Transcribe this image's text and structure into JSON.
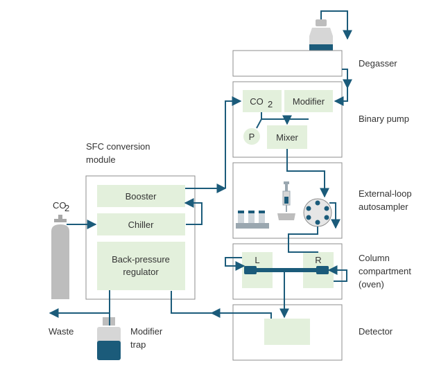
{
  "labels": {
    "degasser": "Degasser",
    "binary_pump": "Binary pump",
    "autosampler_line1": "External-loop",
    "autosampler_line2": "autosampler",
    "column_line1": "Column",
    "column_line2": "compartment",
    "column_line3": "(oven)",
    "detector": "Detector",
    "sfc_line1": "SFC conversion",
    "sfc_line2": "module",
    "co2_cylinder": "CO",
    "co2_cylinder_sub": "2",
    "waste": "Waste",
    "modifier_trap_line1": "Modifier",
    "modifier_trap_line2": "trap"
  },
  "boxes": {
    "co2": "CO",
    "co2_sub": "2",
    "modifier": "Modifier",
    "pressure_sensor": "P",
    "mixer": "Mixer",
    "booster": "Booster",
    "chiller": "Chiller",
    "bpr_line1": "Back-pressure",
    "bpr_line2": "regulator",
    "column_left": "L",
    "column_right": "R"
  },
  "colors": {
    "flow_line": "#1b5b7a",
    "box_fill": "#e3f0dc",
    "module_border": "#8c8c8c",
    "cylinder_gray": "#bdbdbd",
    "text": "#333333"
  }
}
